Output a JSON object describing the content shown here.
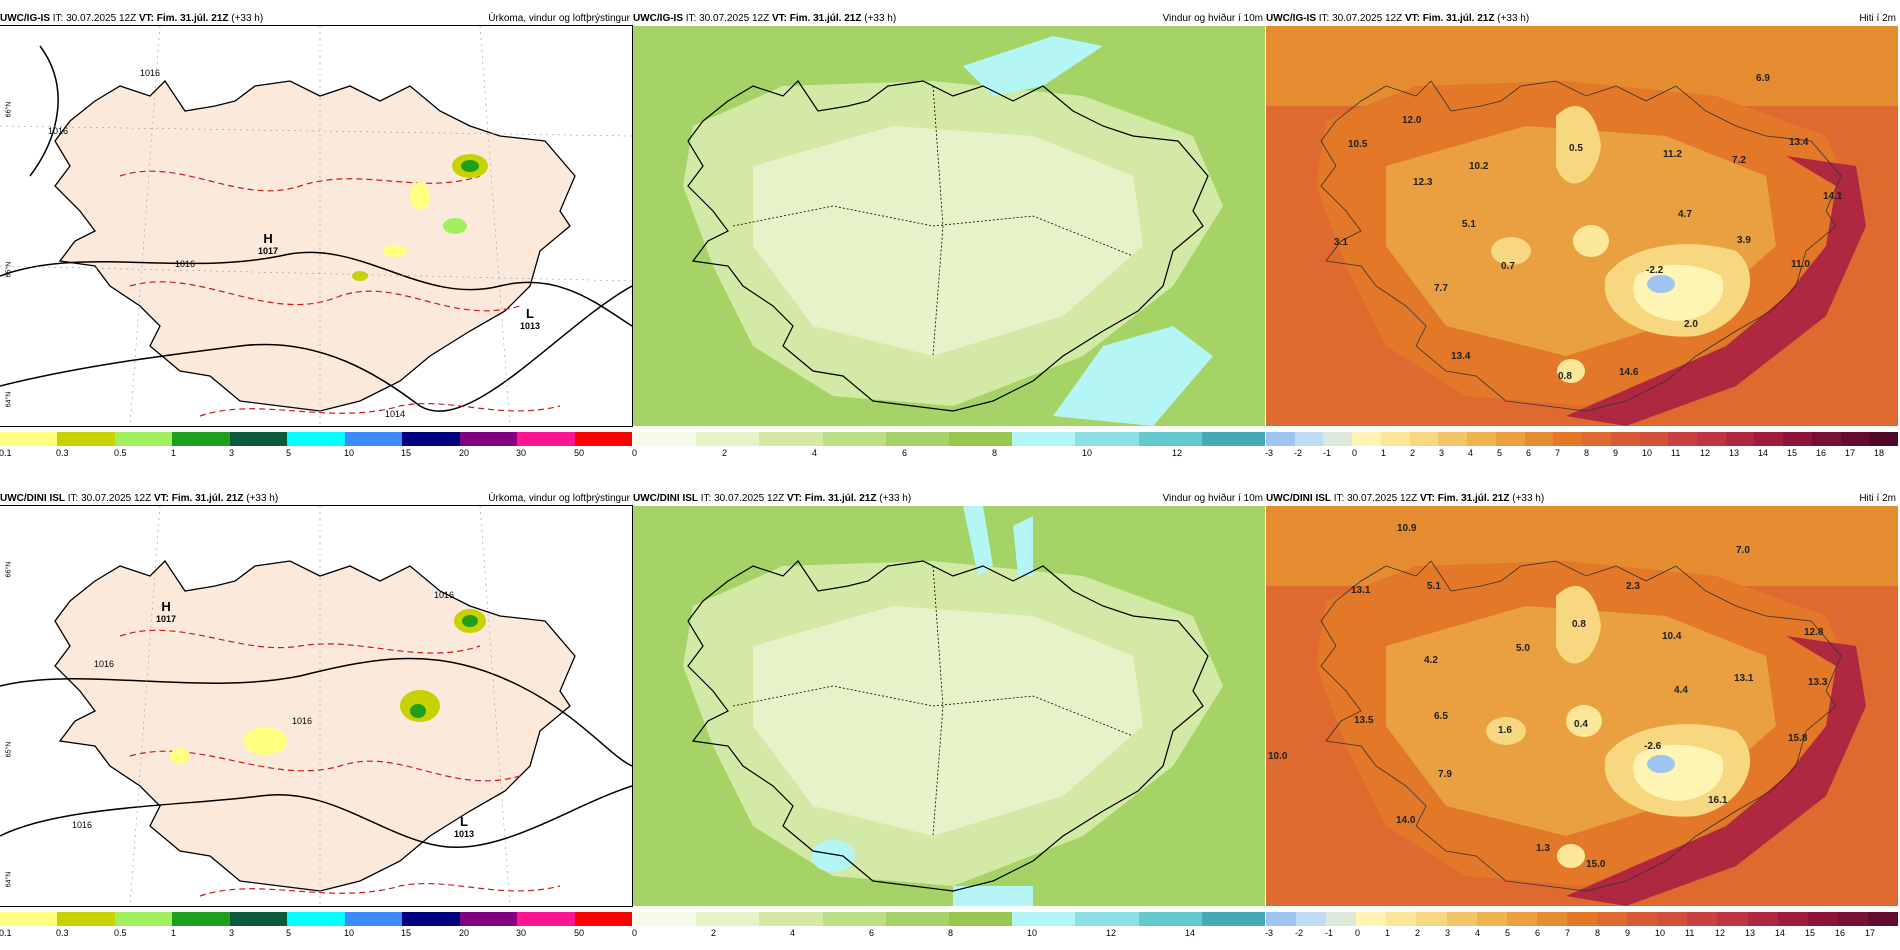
{
  "rows": [
    {
      "model": "UWC/IG-IS",
      "it_label": "IT:",
      "it": "30.07.2025 12Z",
      "vt_label": "VT:",
      "vt": "Fim. 31.júl. 21Z",
      "lead": "(+33 h)",
      "precip": {
        "title": "Úrkoma, vindur og loftþrýstingur",
        "highs": [
          {
            "letter": "H",
            "pressure": "1017"
          }
        ],
        "lows": [
          {
            "letter": "L",
            "pressure": "1013"
          }
        ],
        "isobar_labels": [
          "1016",
          "1016",
          "1016",
          "1014"
        ],
        "lat_labels": [
          "66°N",
          "65°N",
          "64°N"
        ],
        "colorbar_ticks": [
          "0.1",
          "0.3",
          "0.5",
          "1",
          "3",
          "5",
          "10",
          "15",
          "20",
          "30",
          "50"
        ]
      },
      "wind": {
        "title": "Vindur og hviður í 10m",
        "colorbar_ticks": [
          "0",
          "2",
          "4",
          "6",
          "8",
          "10",
          "12"
        ]
      },
      "temp": {
        "title": "Hiti í 2m",
        "labels": [
          "10.5",
          "12.0",
          "12.3",
          "10.2",
          "0.5",
          "11.2",
          "7.2",
          "6.9",
          "13.4",
          "14.1",
          "5.1",
          "3.1",
          "0.7",
          "4.7",
          "3.9",
          "-2.2",
          "11.0",
          "7.7",
          "13.4",
          "0.8",
          "14.6",
          "2.0"
        ],
        "colorbar_ticks": [
          "-3",
          "-2",
          "-1",
          "0",
          "1",
          "2",
          "3",
          "4",
          "5",
          "6",
          "7",
          "8",
          "9",
          "10",
          "11",
          "12",
          "13",
          "14",
          "15",
          "16",
          "17",
          "18"
        ]
      }
    },
    {
      "model": "UWC/DINI ISL",
      "it_label": "IT:",
      "it": "30.07.2025 12Z",
      "vt_label": "VT:",
      "vt": "Fim. 31.júl. 21Z",
      "lead": "(+33 h)",
      "precip": {
        "title": "Úrkoma, vindur og loftþrýstingur",
        "highs": [
          {
            "letter": "H",
            "pressure": "1017"
          }
        ],
        "lows": [
          {
            "letter": "L",
            "pressure": "1013"
          }
        ],
        "isobar_labels": [
          "1016",
          "1016",
          "1016",
          "1016"
        ],
        "lat_labels": [
          "66°N",
          "65°N",
          "64°N"
        ],
        "colorbar_ticks": [
          "0.1",
          "0.3",
          "0.5",
          "1",
          "3",
          "5",
          "10",
          "15",
          "20",
          "30",
          "50"
        ]
      },
      "wind": {
        "title": "Vindur og hviður í 10m",
        "colorbar_ticks": [
          "0",
          "2",
          "4",
          "6",
          "8",
          "10",
          "12",
          "14"
        ]
      },
      "temp": {
        "title": "Hiti í 2m",
        "labels": [
          "10.9",
          "13.1",
          "5.1",
          "2.3",
          "7.0",
          "0.8",
          "10.4",
          "12.8",
          "4.2",
          "5.0",
          "4.4",
          "13.1",
          "13.3",
          "13.5",
          "6.5",
          "1.6",
          "0.4",
          "-2.6",
          "15.8",
          "10.0",
          "7.9",
          "16.1",
          "14.0",
          "1.3",
          "15.0"
        ],
        "colorbar_ticks": [
          "-3",
          "-2",
          "-1",
          "0",
          "1",
          "2",
          "3",
          "4",
          "5",
          "6",
          "7",
          "8",
          "9",
          "10",
          "11",
          "12",
          "13",
          "14",
          "15",
          "16",
          "17"
        ]
      }
    }
  ],
  "colors": {
    "precip_scale": [
      "#ffff80",
      "#c8d200",
      "#a0f060",
      "#1ea01e",
      "#0a8c28",
      "#0a5a3c",
      "#00ffff",
      "#3c8cff",
      "#3c3cff",
      "#000080",
      "#800080",
      "#ff1493",
      "#ff0000"
    ],
    "wind_scale": [
      "#f6fbe8",
      "#e6f3c8",
      "#d2eaa6",
      "#bcdf86",
      "#a6d366",
      "#96c850",
      "#b4f5f5",
      "#8ce0e6",
      "#64c8cd",
      "#46aab4"
    ],
    "temp_scale": [
      "#9ec4f0",
      "#c0dcf5",
      "#dce8d8",
      "#fff4b4",
      "#fbe79a",
      "#f7d880",
      "#f2c666",
      "#eeb450",
      "#eaa040",
      "#e68c30",
      "#e27828",
      "#de6a30",
      "#d85a34",
      "#d2503a",
      "#c84040",
      "#be3440",
      "#b02840",
      "#a01c3c",
      "#8c1438",
      "#781034",
      "#640c30",
      "#500828"
    ],
    "land_precip": "#fbeadc",
    "sea_precip": "#ffffff",
    "isobar": "#000000",
    "isotherm": "#d01818"
  }
}
